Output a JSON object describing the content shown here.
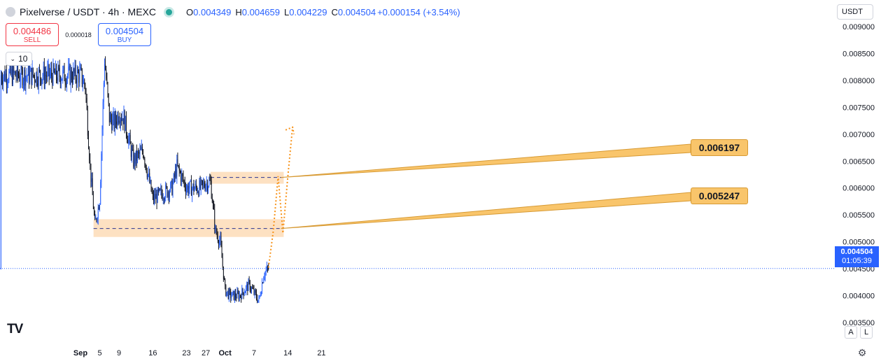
{
  "header": {
    "symbol": "Pixelverse",
    "quote": "USDT",
    "interval": "4h",
    "exchange": "MEXC",
    "title": "Pixelverse / USDT · 4h · MEXC",
    "ohlc": {
      "o_label": "O",
      "o": "0.004349",
      "h_label": "H",
      "h": "0.004659",
      "l_label": "L",
      "l": "0.004229",
      "c_label": "C",
      "c": "0.004504",
      "change": "+0.000154 (+3.54%)"
    }
  },
  "trade_panel": {
    "sell_price": "0.004486",
    "sell_label": "SELL",
    "spread": "0.000018",
    "buy_price": "0.004504",
    "buy_label": "BUY"
  },
  "interval_button": "10",
  "currency_button": "USDT",
  "axis_buttons": {
    "auto": "A",
    "log": "L"
  },
  "last_price_tag": {
    "price": "0.004504",
    "countdown": "01:05:39"
  },
  "callouts": {
    "upper": "0.006197",
    "lower": "0.005247"
  },
  "colors": {
    "up": "#2962ff",
    "down": "#131722",
    "zone": "#fde1c2",
    "level_line": "#2a3490",
    "projection": "#f7931a",
    "callout_bg": "#f9c56b"
  },
  "chart_data": {
    "type": "candlestick",
    "interval": "4h",
    "ylim": [
      0.00328,
      0.00905
    ],
    "y_ticks": [
      "0.009000",
      "0.008500",
      "0.008000",
      "0.007500",
      "0.007000",
      "0.006500",
      "0.006000",
      "0.005500",
      "0.005000",
      "0.004500",
      "0.004000",
      "0.003500"
    ],
    "x_ticks": [
      "Sep",
      "5",
      "9",
      "16",
      "23",
      "27",
      "Oct",
      "7",
      "14",
      "21"
    ],
    "key_points": [
      {
        "date": "Sep 1",
        "close": 0.0081
      },
      {
        "date": "Sep 2",
        "close": 0.0079
      },
      {
        "date": "Sep 3",
        "close": 0.0064
      },
      {
        "date": "Sep 4",
        "close": 0.0053
      },
      {
        "date": "Sep 5",
        "close": 0.0058
      },
      {
        "date": "Sep 6",
        "close": 0.0084
      },
      {
        "date": "Sep 7",
        "close": 0.0073
      },
      {
        "date": "Sep 8",
        "close": 0.0072
      },
      {
        "date": "Sep 9",
        "close": 0.0074
      },
      {
        "date": "Sep 10",
        "close": 0.0073
      },
      {
        "date": "Sep 12",
        "close": 0.0065
      },
      {
        "date": "Sep 14",
        "close": 0.0067
      },
      {
        "date": "Sep 16",
        "close": 0.0058
      },
      {
        "date": "Sep 18",
        "close": 0.0059
      },
      {
        "date": "Sep 20",
        "close": 0.006
      },
      {
        "date": "Sep 21",
        "close": 0.0064
      },
      {
        "date": "Sep 23",
        "close": 0.006
      },
      {
        "date": "Sep 26",
        "close": 0.006
      },
      {
        "date": "Sep 27",
        "close": 0.0061
      },
      {
        "date": "Sep 28",
        "close": 0.0061
      },
      {
        "date": "Sep 29",
        "close": 0.0052
      },
      {
        "date": "Sep 30",
        "close": 0.005
      },
      {
        "date": "Oct 1",
        "close": 0.0041
      },
      {
        "date": "Oct 2",
        "close": 0.004
      },
      {
        "date": "Oct 4",
        "close": 0.004
      },
      {
        "date": "Oct 6",
        "close": 0.0042
      },
      {
        "date": "Oct 8",
        "close": 0.0039
      },
      {
        "date": "Oct 9",
        "close": 0.0044
      },
      {
        "date": "Oct 10",
        "close": 0.004504
      }
    ],
    "last_price": 0.004504,
    "zones": [
      {
        "top": 0.0063,
        "bottom": 0.00608,
        "level": 0.006197,
        "from": "Sep 28",
        "to": "Oct 12"
      },
      {
        "top": 0.00542,
        "bottom": 0.00509,
        "level": 0.005247,
        "from": "Sep 4",
        "to": "Oct 12"
      }
    ],
    "projection": [
      {
        "date": "Oct 10",
        "price": 0.00452
      },
      {
        "date": "Oct 11",
        "price": 0.0052
      },
      {
        "date": "Oct 12",
        "price": 0.00622
      },
      {
        "date": "Oct 13",
        "price": 0.00516
      },
      {
        "date": "Oct 14",
        "price": 0.0062
      },
      {
        "date": "Oct 15",
        "price": 0.00713
      }
    ],
    "grid": false,
    "legend": "none"
  }
}
